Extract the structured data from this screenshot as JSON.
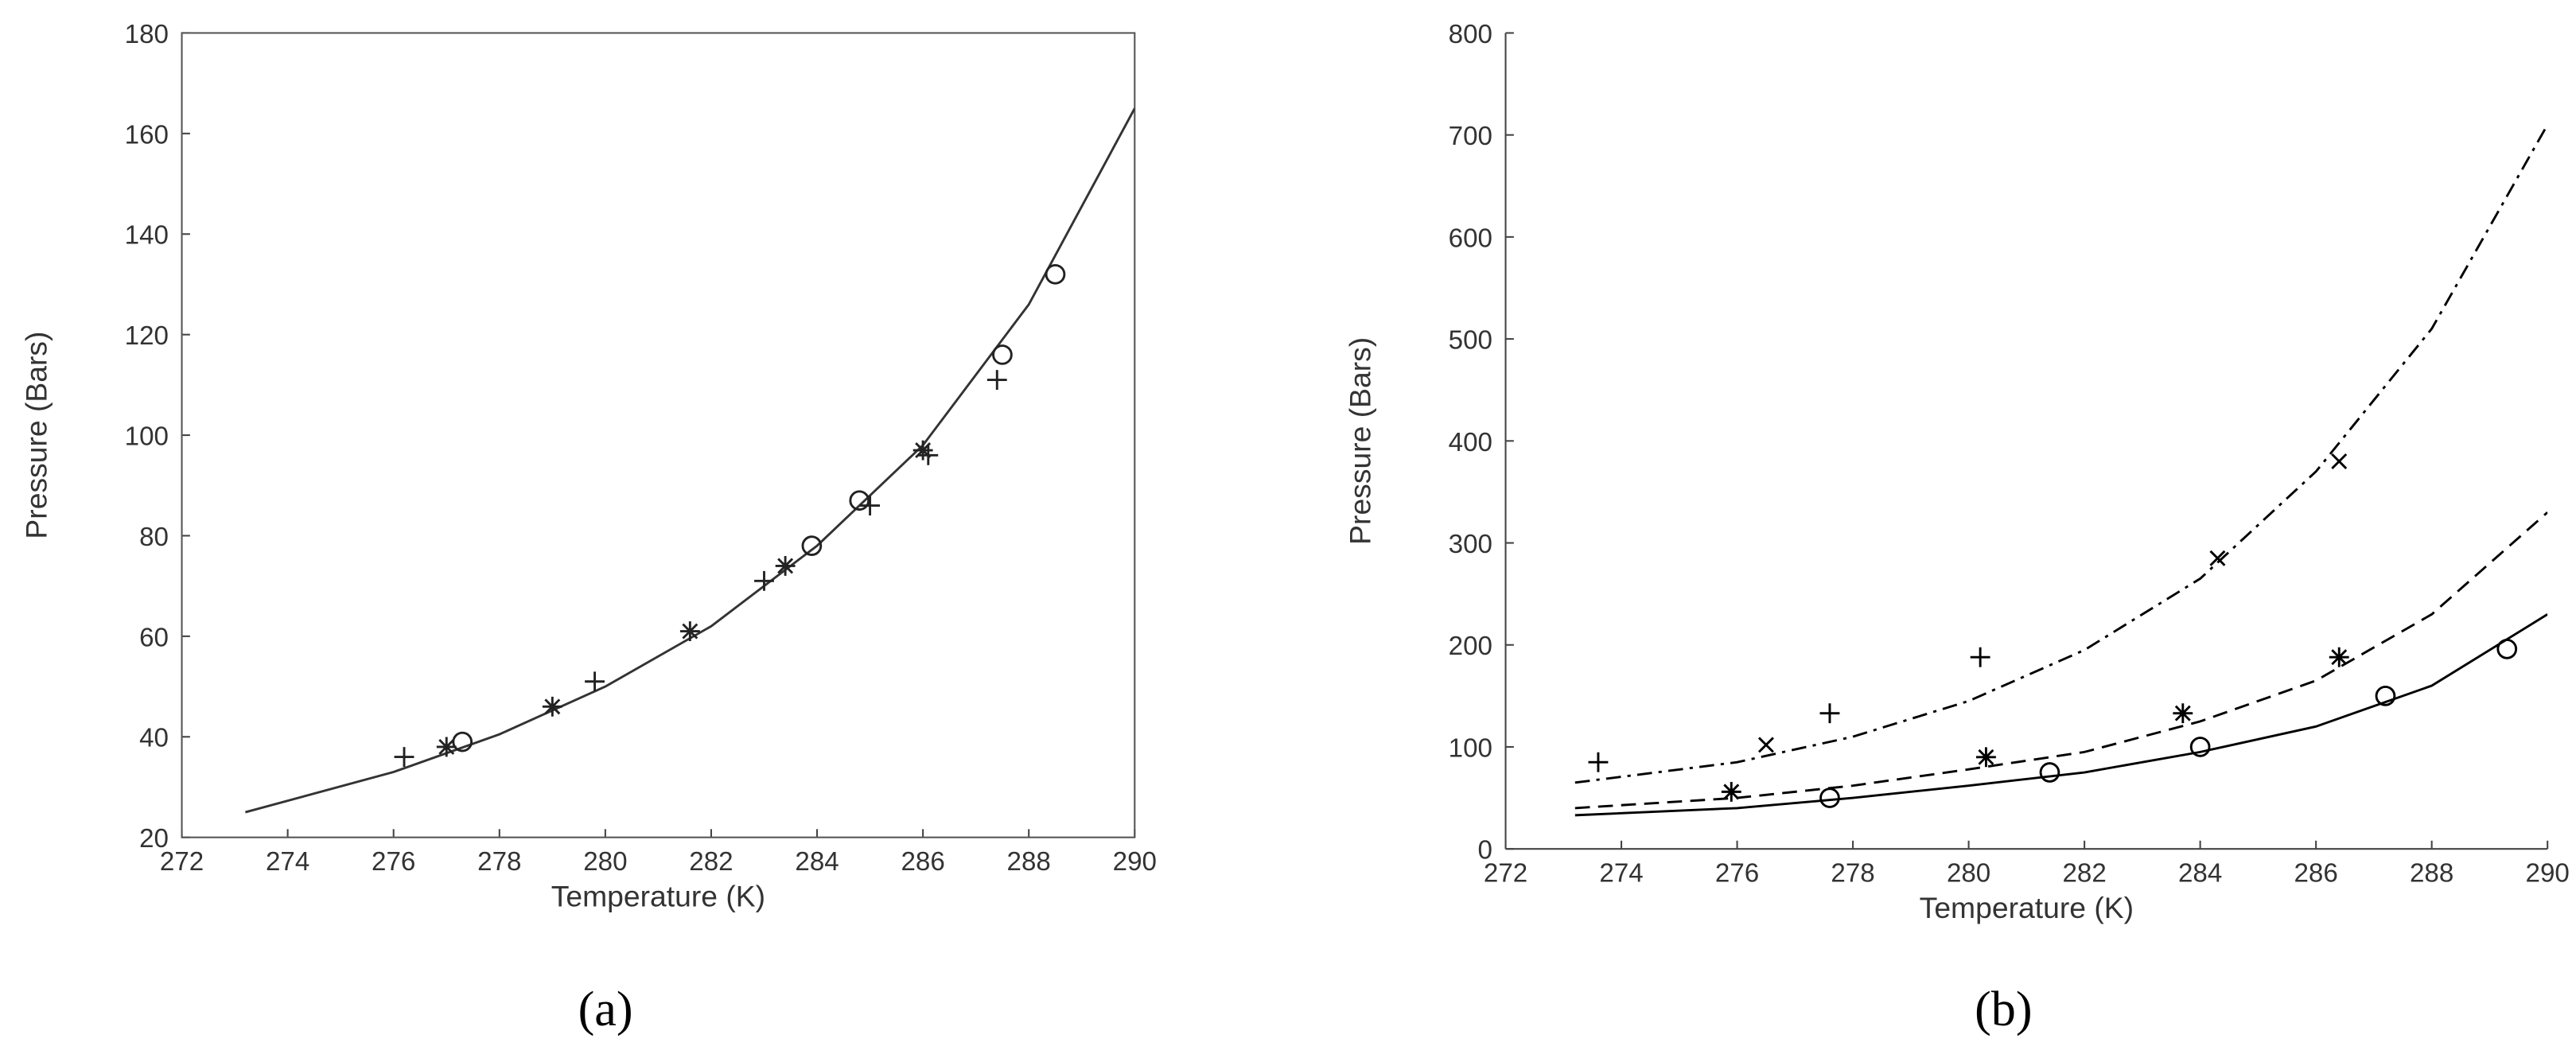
{
  "chart_data": [
    {
      "type": "line",
      "caption": "(a)",
      "xlabel": "Temperature (K)",
      "ylabel": "Pressure (Bars)",
      "xlim": [
        272,
        290
      ],
      "xticks": [
        272,
        274,
        276,
        278,
        280,
        282,
        284,
        286,
        288,
        290
      ],
      "ylim": [
        20,
        180
      ],
      "yticks": [
        20,
        40,
        60,
        80,
        100,
        120,
        140,
        160,
        180
      ],
      "box": true,
      "series": [
        {
          "mode": "line",
          "dash": "solid",
          "color": "#333333",
          "x": [
            273.2,
            276,
            278,
            280,
            282,
            284,
            286,
            288,
            290
          ],
          "values": [
            25,
            33,
            40.5,
            50,
            62,
            78,
            98,
            126,
            165
          ]
        },
        {
          "mode": "markers",
          "marker": "plus",
          "color": "#222222",
          "x": [
            276.2,
            279.8,
            283,
            285,
            286.1,
            287.4
          ],
          "values": [
            36,
            51,
            71,
            86,
            96,
            111
          ]
        },
        {
          "mode": "markers",
          "marker": "star",
          "color": "#222222",
          "x": [
            277,
            279,
            281.6,
            283.4,
            286
          ],
          "values": [
            38,
            46,
            61,
            74,
            97
          ]
        },
        {
          "mode": "markers",
          "marker": "circle",
          "color": "#222222",
          "x": [
            277.3,
            283.9,
            284.8,
            287.5,
            288.5
          ],
          "values": [
            39,
            78,
            87,
            116,
            132
          ]
        }
      ]
    },
    {
      "type": "line",
      "caption": "(b)",
      "xlabel": "Temperature (K)",
      "ylabel": "Pressure (Bars)",
      "xlim": [
        272,
        290
      ],
      "xticks": [
        272,
        274,
        276,
        278,
        280,
        282,
        284,
        286,
        288,
        290
      ],
      "ylim": [
        0,
        800
      ],
      "yticks": [
        0,
        100,
        200,
        300,
        400,
        500,
        600,
        700,
        800
      ],
      "box": false,
      "series": [
        {
          "mode": "line",
          "dash": "solid",
          "color": "#000000",
          "x": [
            273.2,
            276,
            278,
            280,
            282,
            284,
            286,
            288,
            290
          ],
          "values": [
            33,
            40,
            50,
            62,
            75,
            95,
            120,
            160,
            230
          ]
        },
        {
          "mode": "line",
          "dash": "dashed",
          "color": "#000000",
          "x": [
            273.2,
            276,
            278,
            280,
            282,
            284,
            286,
            288,
            290
          ],
          "values": [
            40,
            50,
            62,
            78,
            95,
            125,
            165,
            230,
            330
          ]
        },
        {
          "mode": "line",
          "dash": "dashdot",
          "color": "#000000",
          "x": [
            273.2,
            276,
            278,
            280,
            282,
            284,
            286,
            288,
            290
          ],
          "values": [
            65,
            85,
            110,
            145,
            195,
            265,
            370,
            510,
            710
          ]
        },
        {
          "mode": "markers",
          "marker": "plus",
          "color": "#000000",
          "x": [
            273.6,
            277.6,
            280.2
          ],
          "values": [
            85,
            133,
            188
          ]
        },
        {
          "mode": "markers",
          "marker": "x",
          "color": "#000000",
          "x": [
            276.5,
            284.3,
            286.4
          ],
          "values": [
            102,
            285,
            380
          ]
        },
        {
          "mode": "markers",
          "marker": "star",
          "color": "#000000",
          "x": [
            275.9,
            280.3,
            283.7,
            286.4
          ],
          "values": [
            56,
            90,
            133,
            188
          ]
        },
        {
          "mode": "markers",
          "marker": "circle",
          "color": "#000000",
          "x": [
            277.6,
            281.4,
            284,
            287.2,
            289.3
          ],
          "values": [
            50,
            75,
            100,
            150,
            196
          ]
        }
      ]
    }
  ]
}
